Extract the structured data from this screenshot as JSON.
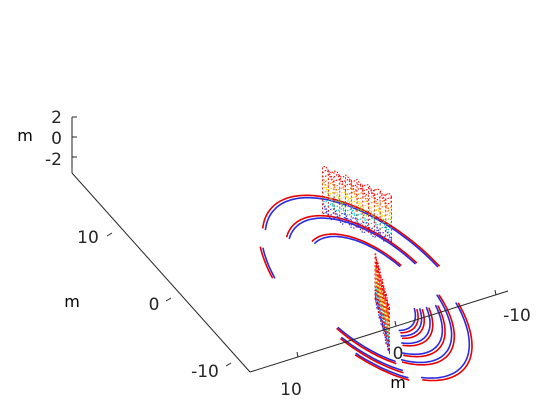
{
  "chart_data": {
    "type": "scatter",
    "title": "",
    "xlabel": "m",
    "ylabel": "m",
    "zlabel": "m",
    "x_ticks": [
      "-10",
      "0",
      "10"
    ],
    "y_ticks": [
      "-10",
      "0",
      "10"
    ],
    "z_ticks": [
      "2",
      "0",
      "-2"
    ],
    "xlim": [
      -15,
      15
    ],
    "ylim": [
      -15,
      15
    ],
    "zlim": [
      -3,
      3
    ],
    "grid": false,
    "colors": {
      "ring_red": "#e60000",
      "ring_blue": "#2a2ae0",
      "wall_palette": [
        "#ff0000",
        "#ff6a00",
        "#ffd000",
        "#9acd32",
        "#00c0c0",
        "#2a2ae0"
      ]
    },
    "series": [
      {
        "type": "ground-rings",
        "rings": [
          {
            "r": 14.0,
            "start_deg": 55,
            "end_deg": 178
          },
          {
            "r": 14.5,
            "start_deg": 22,
            "end_deg": 40
          },
          {
            "r": 12.5,
            "start_deg": 200,
            "end_deg": 290
          },
          {
            "r": 11.0,
            "start_deg": 60,
            "end_deg": 170
          },
          {
            "r": 10.2,
            "start_deg": 195,
            "end_deg": 300
          },
          {
            "r": 9.0,
            "start_deg": 205,
            "end_deg": 295
          },
          {
            "r": 8.3,
            "start_deg": 75,
            "end_deg": 165
          },
          {
            "r": 7.4,
            "start_deg": 210,
            "end_deg": 290
          },
          {
            "r": 6.3,
            "start_deg": 215,
            "end_deg": 285
          },
          {
            "r": 5.5,
            "start_deg": 218,
            "end_deg": 282
          },
          {
            "r": 13.0,
            "start_deg": 300,
            "end_deg": 330
          },
          {
            "r": 12.0,
            "start_deg": 302,
            "end_deg": 340
          },
          {
            "r": 10.8,
            "start_deg": 305,
            "end_deg": 345
          }
        ]
      },
      {
        "type": "wall-points",
        "walls": [
          {
            "x1": -9.8,
            "y1": 5.0,
            "x2": -3.0,
            "y2": 11.0,
            "z_top": 2.2,
            "z_bottom": -2.4
          },
          {
            "x1": 7.5,
            "y1": -9.0,
            "x2": 2.0,
            "y2": -2.0,
            "z_top": 3.0,
            "z_bottom": -1.6
          }
        ]
      }
    ]
  }
}
